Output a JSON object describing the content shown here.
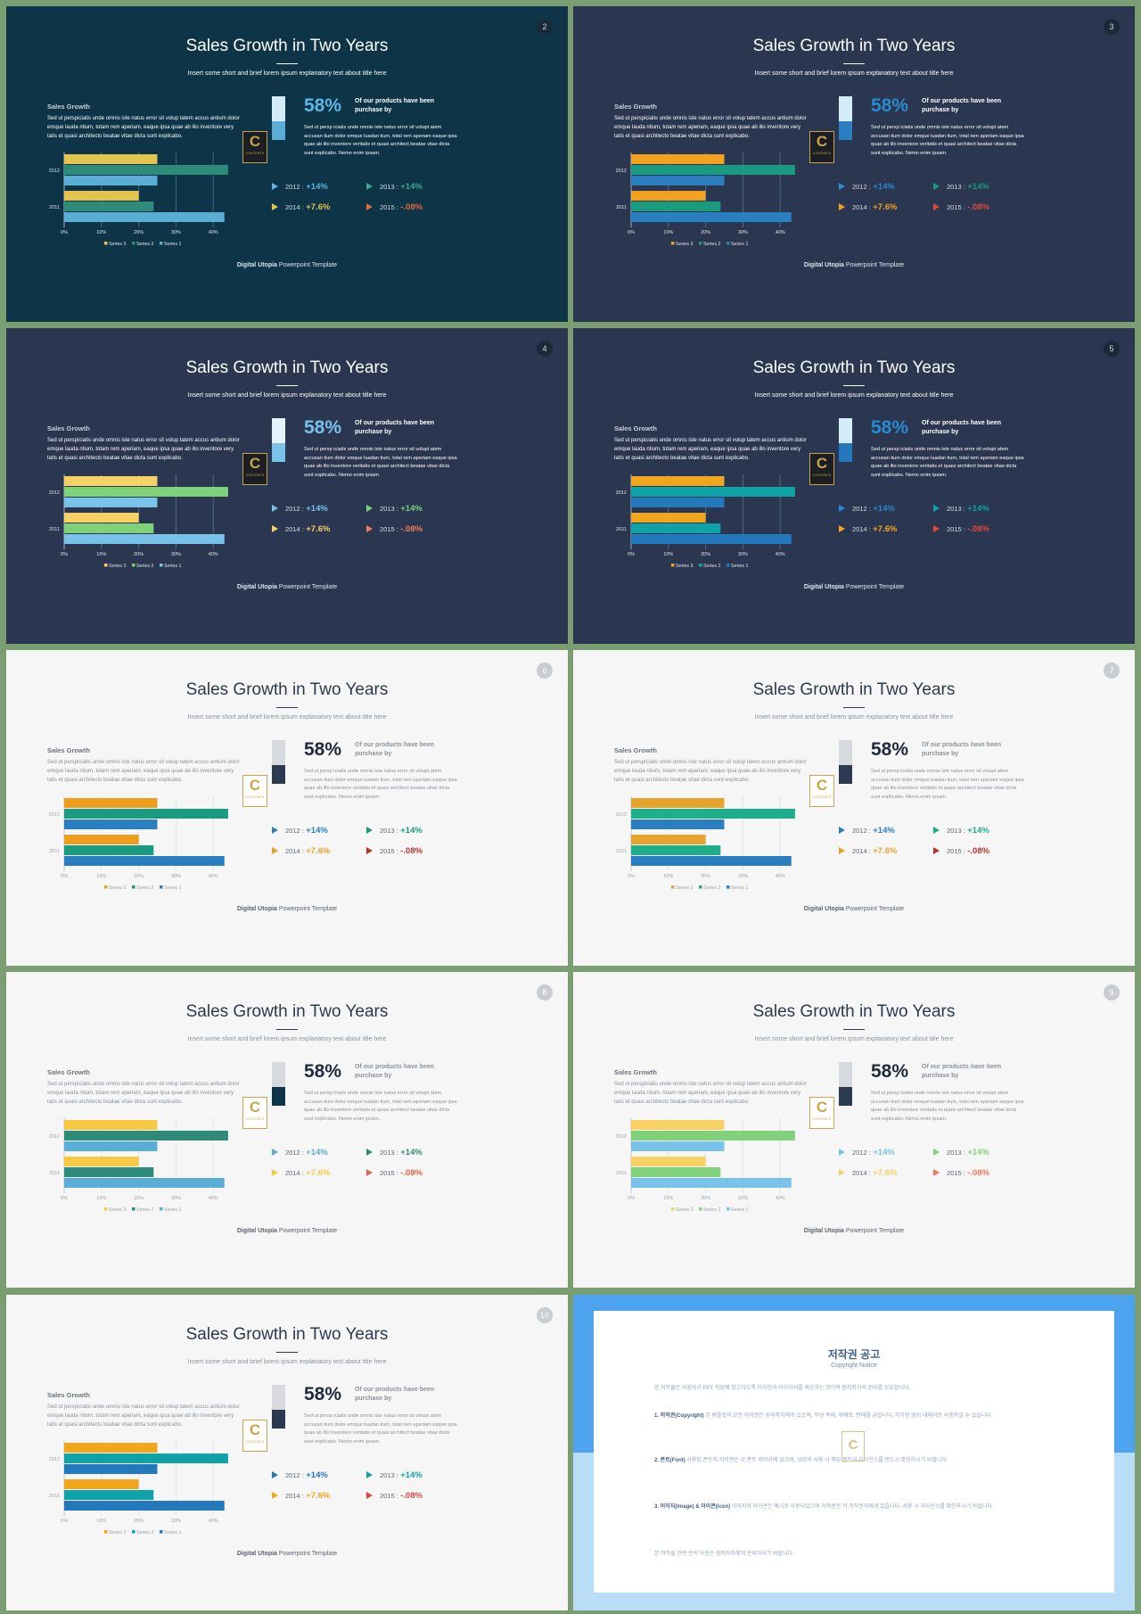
{
  "template": {
    "title": "Sales Growth in Two Years",
    "subtitle": "Insert some short and brief lorem ipsum explanatory text about title here",
    "section_title": "Sales Growth",
    "body_text": "Sed ut perspiciatis unde omnis iste natus error sit volup tatem accus antium dolor emque lauda ntium, totam rem aperiam, eaque ipsa quae ab illo inventore very tatis et quasi architecto beatae vitae dicta sunt explicabo.",
    "logo_letter": "C",
    "logo_text": "CONTENTS",
    "percent": "58%",
    "percent_heading": "Of our products have been purchase by",
    "percent_text": "Sed ut persp iciatis unde omnis iste natus error sit volupt atem accusan tium dolor emque luadan tium, total rem aperiam eaque ipsa quae ab illo inventore veritatis et quasi architect beatae vitae dicta sunt explicabo. Nemo enim ipsam.",
    "stats": [
      {
        "year": "2012 :",
        "value": "+14%"
      },
      {
        "year": "2013 :",
        "value": "+14%"
      },
      {
        "year": "2014 :",
        "value": "+7.6%"
      },
      {
        "year": "2015 :",
        "value": "-.08%"
      }
    ],
    "footer_bold": "Digital Utopia",
    "footer_rest": " Powerpoint Template"
  },
  "chart_data": {
    "type": "bar",
    "orientation": "horizontal",
    "categories": [
      "2012",
      "2011"
    ],
    "series": [
      {
        "name": "Series 3",
        "values": [
          25,
          20
        ]
      },
      {
        "name": "Series 2",
        "values": [
          44,
          24
        ]
      },
      {
        "name": "Series 1",
        "values": [
          25,
          43
        ]
      }
    ],
    "xlim": [
      0,
      50
    ],
    "xticks": [
      "0%",
      "10%",
      "20%",
      "30%",
      "40%",
      "50%"
    ],
    "legend": "bottom",
    "grid": true
  },
  "slides": [
    {
      "number": "2",
      "theme": "dark",
      "bg": "#0d3547",
      "colors": [
        "#e4c34e",
        "#2e8b7a",
        "#5aaed6"
      ],
      "accent": "#5db6e6",
      "gauge": [
        "#d4ecf8",
        "#5aaed6"
      ],
      "stat_colors": [
        "#5db6e6",
        "#3aa88f",
        "#e4c34e",
        "#e0683f"
      ]
    },
    {
      "number": "3",
      "theme": "dark",
      "bg": "#2b3750",
      "colors": [
        "#f2a21e",
        "#1a9a7e",
        "#2a7fc1"
      ],
      "accent": "#2a8ad0",
      "gauge": [
        "#d4ecf8",
        "#2a7fc1"
      ],
      "stat_colors": [
        "#2a8ad0",
        "#1a9a7e",
        "#f2a21e",
        "#e04a3a"
      ]
    },
    {
      "number": "4",
      "theme": "dark",
      "bg": "#2b3750",
      "colors": [
        "#f7d163",
        "#7fd17a",
        "#79c2ea"
      ],
      "accent": "#79c2ea",
      "gauge": [
        "#e6f3fb",
        "#79c2ea"
      ],
      "stat_colors": [
        "#79c2ea",
        "#7fd17a",
        "#f7d163",
        "#ef7b58"
      ]
    },
    {
      "number": "5",
      "theme": "dark",
      "bg": "#2b3750",
      "colors": [
        "#f2a61e",
        "#0fa3a8",
        "#2479bd"
      ],
      "accent": "#2a8ad0",
      "gauge": [
        "#d4ecf8",
        "#2479bd"
      ],
      "stat_colors": [
        "#2a8ad0",
        "#0fa3a8",
        "#f2a61e",
        "#e04a3a"
      ]
    },
    {
      "number": "6",
      "theme": "light",
      "bg": "#f6f6f6",
      "colors": [
        "#ee9e1e",
        "#1a9a7e",
        "#2a7fc1"
      ],
      "accent": "#1f2b3c",
      "gauge": [
        "#d6dade",
        "#2b3a50"
      ],
      "stat_colors": [
        "#2a7fc1",
        "#1a9a7e",
        "#ee9e1e",
        "#b8332a"
      ]
    },
    {
      "number": "7",
      "theme": "light",
      "bg": "#f6f6f6",
      "colors": [
        "#e6a32e",
        "#1fae8a",
        "#2a7fc1"
      ],
      "accent": "#1f2b3c",
      "gauge": [
        "#d6dade",
        "#2b3a50"
      ],
      "stat_colors": [
        "#2a7fc1",
        "#1fae8a",
        "#e6a32e",
        "#b8332a"
      ]
    },
    {
      "number": "8",
      "theme": "light",
      "bg": "#f6f6f6",
      "colors": [
        "#f7c843",
        "#2e8b7a",
        "#5aaed6"
      ],
      "accent": "#1f2b3c",
      "gauge": [
        "#d6dade",
        "#0d3547"
      ],
      "stat_colors": [
        "#5aaed6",
        "#2e8b7a",
        "#f7c843",
        "#e0683f"
      ]
    },
    {
      "number": "9",
      "theme": "light",
      "bg": "#f6f6f6",
      "colors": [
        "#f7d163",
        "#7fd17a",
        "#79c2ea"
      ],
      "accent": "#1f2b3c",
      "gauge": [
        "#d6dade",
        "#2b3a50"
      ],
      "stat_colors": [
        "#79c2ea",
        "#7fd17a",
        "#f7d163",
        "#ef7b58"
      ]
    },
    {
      "number": "10",
      "theme": "light",
      "bg": "#f6f6f6",
      "colors": [
        "#f2a61e",
        "#0fa3a8",
        "#2479bd"
      ],
      "accent": "#1f2b3c",
      "gauge": [
        "#d6dade",
        "#2b3a50"
      ],
      "stat_colors": [
        "#2479bd",
        "#0fa3a8",
        "#f2a61e",
        "#e04a3a"
      ]
    }
  ],
  "notice": {
    "title": "저작권 공고",
    "subtitle": "Copyright Notice",
    "intro": "본 저작물은 사용자가 PPT 작업에 참고하도록 디자인과 아이디어를 제공하는 것이며 원저작자의 권리를 보호합니다.",
    "items": [
      {
        "head": "1. 저작권(Copyright)",
        "text": "본 템플릿의 모든 저작권은 원저작자에게 있으며, 무단 복제, 재배포, 판매를 금합니다. 허가된 범위 내에서만 사용하실 수 있습니다."
      },
      {
        "head": "2. 폰트(Font)",
        "text": "사용된 폰트의 저작권은 각 폰트 제작사에 있으며, 상업적 사용 시 해당 폰트의 라이선스를 반드시 확인하시기 바랍니다."
      },
      {
        "head": "3. 이미지(Image) & 아이콘(Icon)",
        "text": "이미지와 아이콘은 예시로 사용되었으며 저작권은 각 저작권자에게 있습니다. 사용 시 라이선스를 확인하시기 바랍니다."
      }
    ],
    "outro": "본 저작물 관련 문의 사항은 원저작자에게 문의하시기 바랍니다."
  }
}
